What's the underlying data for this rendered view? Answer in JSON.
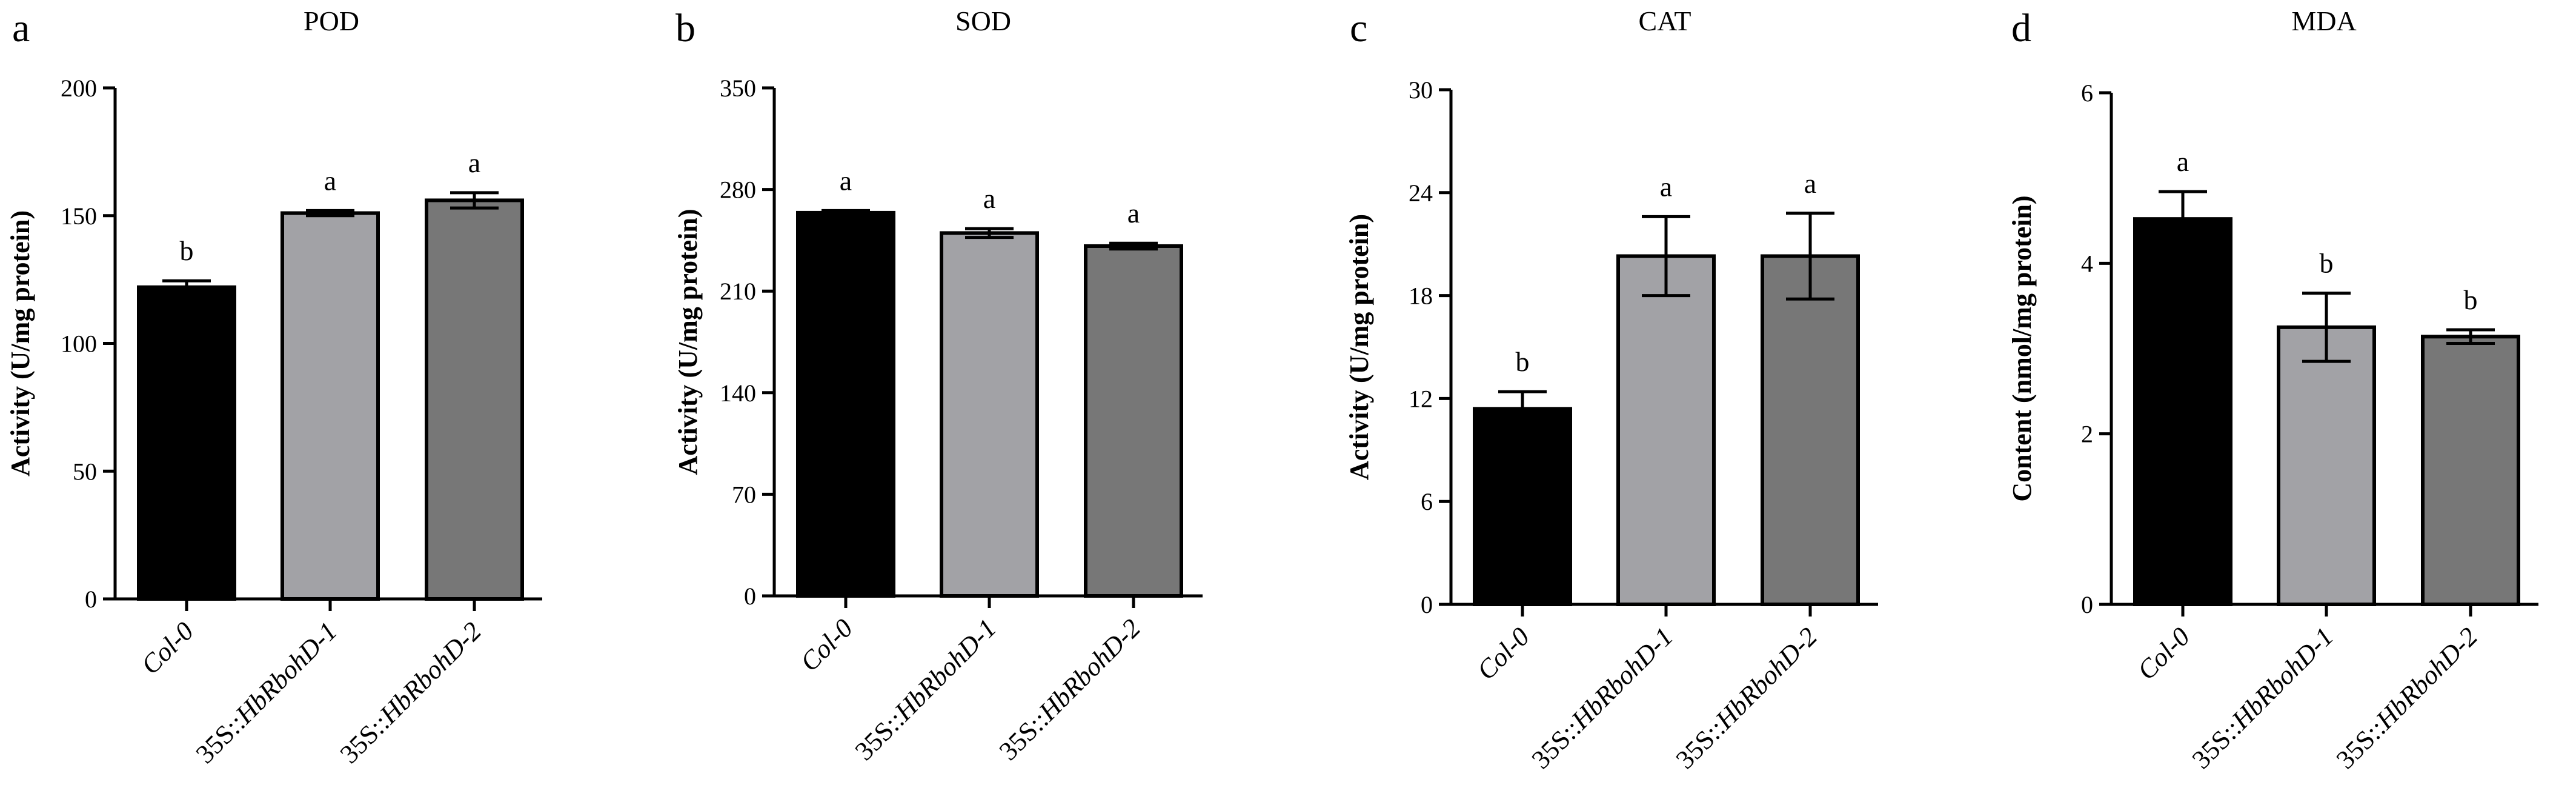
{
  "chart_data": [
    {
      "type": "bar",
      "panel_label": "a",
      "title": "POD",
      "ylabel": "Activity (U/mg protein)",
      "ylim": [
        0,
        200
      ],
      "yticks": [
        0,
        50,
        100,
        150,
        200
      ],
      "categories": [
        "Col-0",
        "35S::HbRbohD-1",
        "35S::HbRbohD-2"
      ],
      "values": [
        122,
        151,
        156
      ],
      "errors": [
        2.5,
        1.0,
        3.0
      ],
      "significance": [
        "b",
        "a",
        "a"
      ],
      "colors": [
        "#000000",
        "#a2a2a6",
        "#777777"
      ]
    },
    {
      "type": "bar",
      "panel_label": "b",
      "title": "SOD",
      "ylabel": "Activity (U/mg protein)",
      "ylim": [
        0,
        350
      ],
      "yticks": [
        0,
        70,
        140,
        210,
        280,
        350
      ],
      "categories": [
        "Col-0",
        "35S::HbRbohD-1",
        "35S::HbRbohD-2"
      ],
      "values": [
        264,
        250,
        241
      ],
      "errors": [
        1.5,
        3.0,
        2.0
      ],
      "significance": [
        "a",
        "a",
        "a"
      ],
      "colors": [
        "#000000",
        "#a2a2a6",
        "#777777"
      ]
    },
    {
      "type": "bar",
      "panel_label": "c",
      "title": "CAT",
      "ylabel": "Activity (U/mg protein)",
      "ylim": [
        0,
        30
      ],
      "yticks": [
        0,
        6,
        12,
        18,
        24,
        30
      ],
      "categories": [
        "Col-0",
        "35S::HbRbohD-1",
        "35S::HbRbohD-2"
      ],
      "values": [
        11.4,
        20.3,
        20.3
      ],
      "errors": [
        1.0,
        2.3,
        2.5
      ],
      "significance": [
        "b",
        "a",
        "a"
      ],
      "colors": [
        "#000000",
        "#a2a2a6",
        "#777777"
      ]
    },
    {
      "type": "bar",
      "panel_label": "d",
      "title": "MDA",
      "ylabel": "Content (nmol/mg protein)",
      "ylim": [
        0,
        6
      ],
      "yticks": [
        0,
        2,
        4,
        6
      ],
      "categories": [
        "Col-0",
        "35S::HbRbohD-1",
        "35S::HbRbohD-2"
      ],
      "values": [
        4.52,
        3.25,
        3.14
      ],
      "errors": [
        0.32,
        0.4,
        0.08
      ],
      "significance": [
        "a",
        "b",
        "b"
      ],
      "colors": [
        "#000000",
        "#a2a2a6",
        "#777777"
      ]
    }
  ]
}
